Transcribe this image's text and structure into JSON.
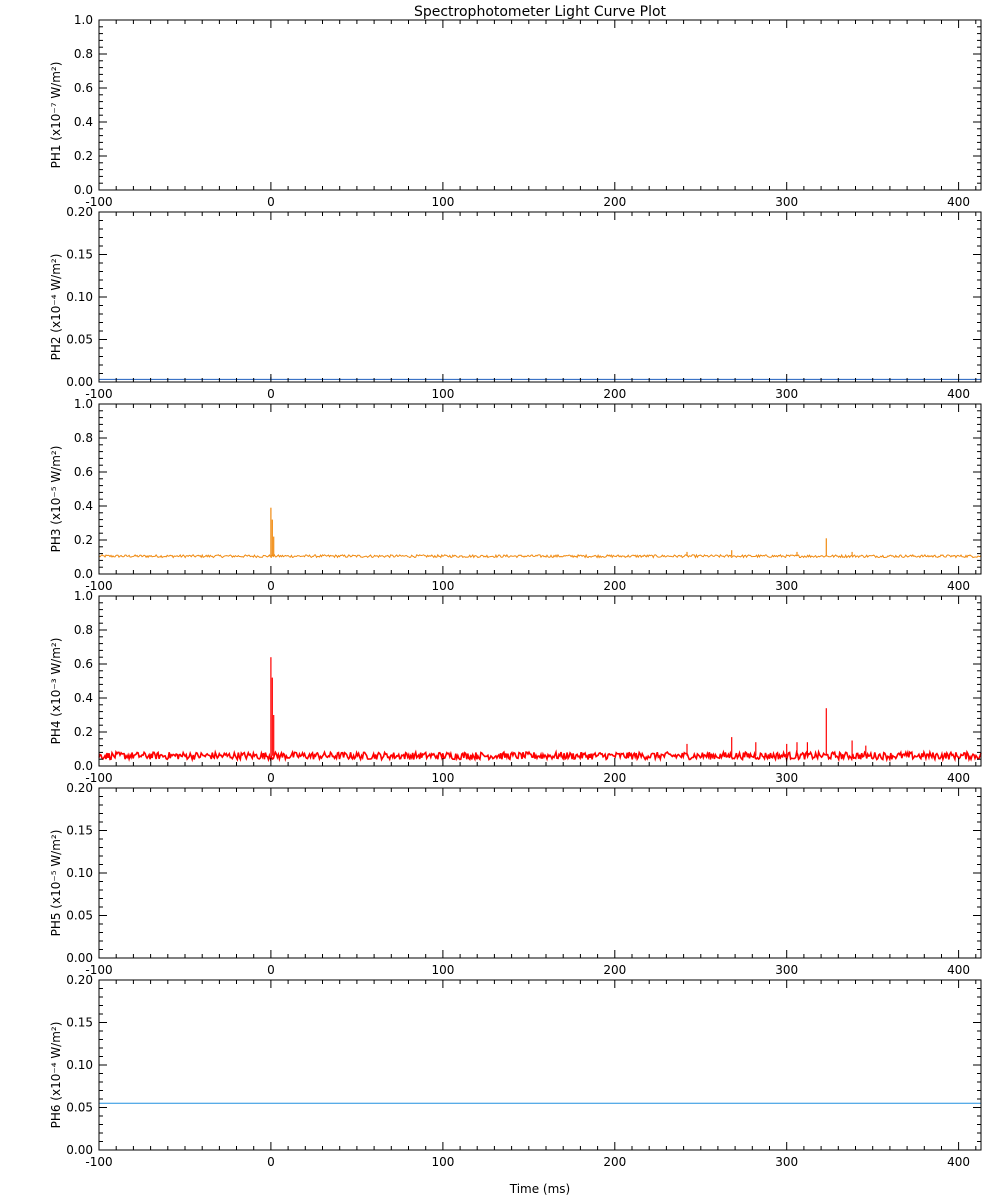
{
  "chart_data": {
    "type": "line",
    "title": "Spectrophotometer Light Curve Plot",
    "xlabel": "Time (ms)",
    "xlim": [
      -100,
      413
    ],
    "xticks": [
      "-100",
      "0",
      "100",
      "200",
      "300",
      "400"
    ],
    "panels": [
      {
        "name": "PH1",
        "ylabel": "PH1    (x10⁻⁷ W/m²)",
        "ylim": [
          0,
          1.0
        ],
        "yticks": [
          "0.0",
          "0.2",
          "0.4",
          "0.6",
          "0.8",
          "1.0"
        ],
        "color": "#8040c0",
        "baseline": 0.0,
        "noise": 0.0,
        "spikes": []
      },
      {
        "name": "PH2",
        "ylabel": "PH2    (x10⁻⁴ W/m²)",
        "ylim": [
          0,
          0.2
        ],
        "yticks": [
          "0.00",
          "0.05",
          "0.10",
          "0.15",
          "0.20"
        ],
        "color": "#1f5fbf",
        "baseline": 0.003,
        "noise": 0.0,
        "spikes": [
          [
            0,
            0.006
          ]
        ]
      },
      {
        "name": "PH3",
        "ylabel": "PH3    (x10⁻⁵ W/m²)",
        "ylim": [
          0,
          1.0
        ],
        "yticks": [
          "0.0",
          "0.2",
          "0.4",
          "0.6",
          "0.8",
          "1.0"
        ],
        "color": "#f08a10",
        "baseline": 0.105,
        "noise": 0.008,
        "spikes": [
          [
            0,
            0.39
          ],
          [
            0.8,
            0.32
          ],
          [
            1.6,
            0.22
          ],
          [
            268,
            0.14
          ],
          [
            323,
            0.21
          ],
          [
            242,
            0.13
          ],
          [
            306,
            0.13
          ],
          [
            338,
            0.13
          ]
        ]
      },
      {
        "name": "PH4",
        "ylabel": "PH4    (x10⁻³ W/m²)",
        "ylim": [
          0,
          1.0
        ],
        "yticks": [
          "0.0",
          "0.2",
          "0.4",
          "0.6",
          "0.8",
          "1.0"
        ],
        "color": "#ff0000",
        "baseline": 0.06,
        "noise": 0.022,
        "spikes": [
          [
            0,
            0.64
          ],
          [
            0.8,
            0.52
          ],
          [
            1.6,
            0.3
          ],
          [
            268,
            0.17
          ],
          [
            323,
            0.34
          ],
          [
            242,
            0.13
          ],
          [
            282,
            0.14
          ],
          [
            300,
            0.13
          ],
          [
            306,
            0.14
          ],
          [
            312,
            0.14
          ],
          [
            338,
            0.15
          ],
          [
            346,
            0.12
          ]
        ]
      },
      {
        "name": "PH5",
        "ylabel": "PH5    (x10⁻⁵ W/m²)",
        "ylim": [
          0,
          0.2
        ],
        "yticks": [
          "0.00",
          "0.05",
          "0.10",
          "0.15",
          "0.20"
        ],
        "color": "#1f9f8f",
        "baseline": 0.0,
        "noise": 0.0,
        "spikes": []
      },
      {
        "name": "PH6",
        "ylabel": "PH6    (x10⁻⁴ W/m²)",
        "ylim": [
          0,
          0.2
        ],
        "yticks": [
          "0.00",
          "0.05",
          "0.10",
          "0.15",
          "0.20"
        ],
        "color": "#2090e0",
        "baseline": 0.055,
        "noise": 0.0,
        "spikes": []
      }
    ]
  }
}
